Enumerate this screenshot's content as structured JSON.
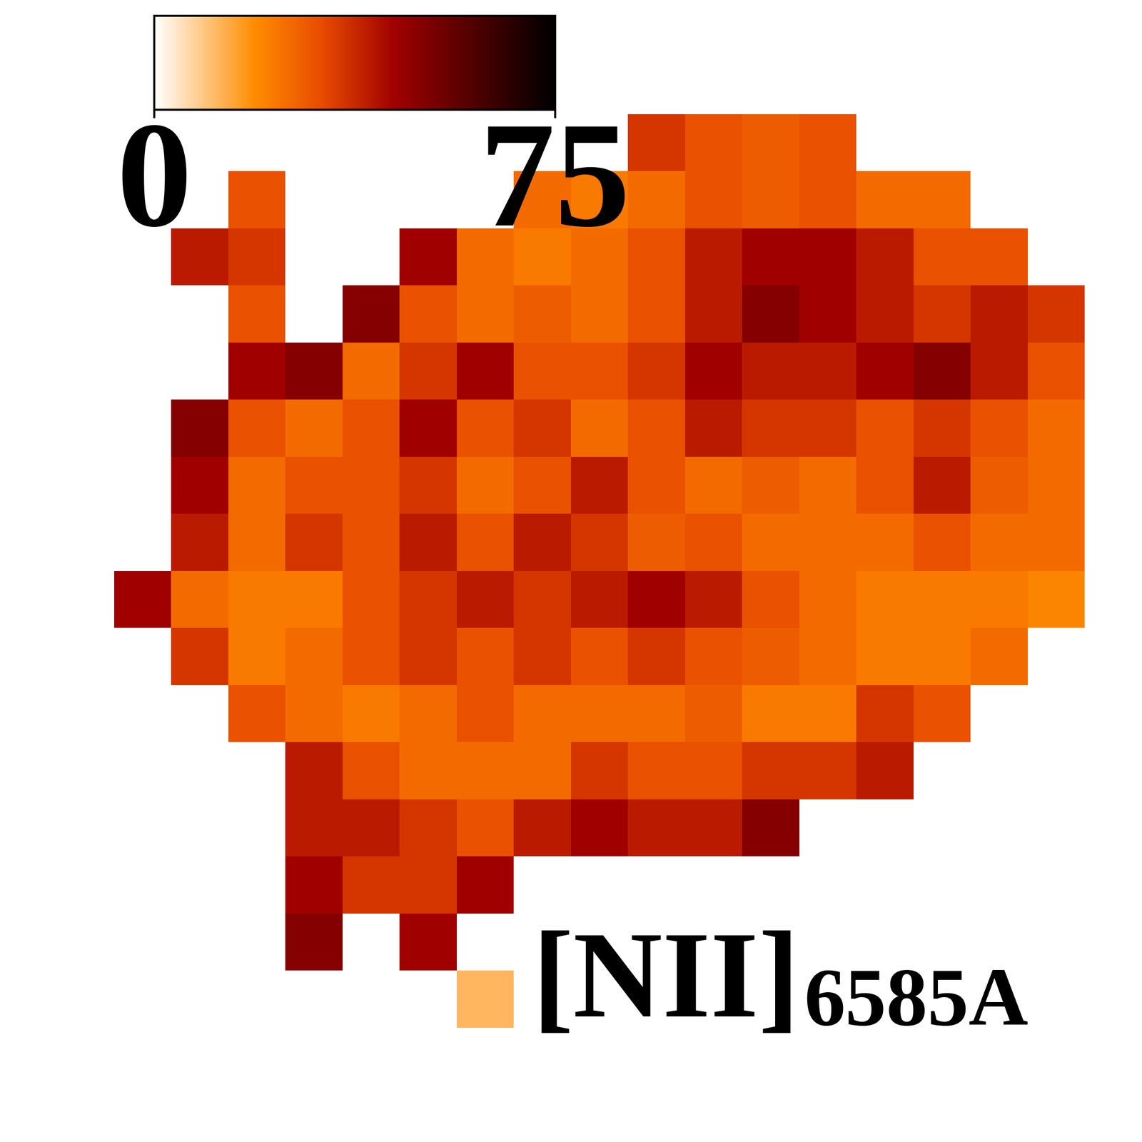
{
  "chart_data": {
    "type": "heatmap",
    "cells": [
      [
        null,
        null,
        null,
        null,
        null,
        null,
        null,
        null,
        null,
        null,
        null,
        null,
        null,
        null,
        null,
        null,
        null,
        null,
        null,
        null
      ],
      [
        null,
        null,
        null,
        null,
        null,
        null,
        null,
        null,
        null,
        null,
        null,
        null,
        null,
        null,
        null,
        null,
        null,
        null,
        null,
        null
      ],
      [
        null,
        null,
        null,
        null,
        null,
        null,
        null,
        null,
        null,
        null,
        null,
        35,
        30,
        28,
        30,
        null,
        null,
        null,
        null,
        null
      ],
      [
        null,
        null,
        null,
        null,
        30,
        null,
        null,
        null,
        null,
        25,
        22,
        25,
        30,
        28,
        30,
        25,
        25,
        null,
        null,
        null
      ],
      [
        null,
        null,
        null,
        40,
        35,
        null,
        null,
        45,
        25,
        22,
        25,
        30,
        40,
        45,
        45,
        40,
        30,
        30,
        null,
        null
      ],
      [
        null,
        null,
        null,
        null,
        30,
        null,
        50,
        30,
        25,
        28,
        25,
        30,
        40,
        50,
        45,
        40,
        35,
        40,
        35,
        null
      ],
      [
        null,
        null,
        null,
        null,
        45,
        50,
        25,
        35,
        45,
        30,
        30,
        35,
        45,
        40,
        40,
        45,
        50,
        40,
        30,
        null
      ],
      [
        null,
        null,
        null,
        50,
        30,
        25,
        30,
        45,
        30,
        35,
        25,
        30,
        40,
        35,
        35,
        30,
        35,
        30,
        25,
        null
      ],
      [
        null,
        null,
        null,
        45,
        25,
        30,
        30,
        35,
        25,
        30,
        40,
        30,
        25,
        28,
        25,
        30,
        40,
        28,
        25,
        null
      ],
      [
        null,
        null,
        null,
        40,
        25,
        35,
        30,
        40,
        30,
        40,
        35,
        28,
        30,
        25,
        25,
        25,
        30,
        25,
        25,
        null
      ],
      [
        null,
        null,
        45,
        25,
        22,
        22,
        30,
        35,
        40,
        35,
        40,
        45,
        40,
        30,
        25,
        22,
        22,
        22,
        20,
        null
      ],
      [
        null,
        null,
        null,
        35,
        22,
        25,
        30,
        35,
        30,
        35,
        30,
        35,
        30,
        28,
        25,
        22,
        22,
        25,
        null,
        null
      ],
      [
        null,
        null,
        null,
        null,
        30,
        25,
        22,
        25,
        30,
        25,
        25,
        25,
        28,
        22,
        22,
        35,
        30,
        null,
        null,
        null
      ],
      [
        null,
        null,
        null,
        null,
        null,
        40,
        30,
        25,
        25,
        25,
        35,
        30,
        30,
        35,
        35,
        40,
        null,
        null,
        null,
        null
      ],
      [
        null,
        null,
        null,
        null,
        null,
        40,
        40,
        35,
        30,
        40,
        45,
        40,
        40,
        50,
        null,
        null,
        null,
        null,
        null,
        null
      ],
      [
        null,
        null,
        null,
        null,
        null,
        45,
        35,
        35,
        45,
        null,
        null,
        null,
        null,
        null,
        null,
        null,
        null,
        null,
        null,
        null
      ],
      [
        null,
        null,
        null,
        null,
        null,
        50,
        null,
        45,
        null,
        null,
        null,
        null,
        null,
        null,
        null,
        null,
        null,
        null,
        null,
        null
      ],
      [
        null,
        null,
        null,
        null,
        null,
        null,
        null,
        null,
        12,
        null,
        null,
        null,
        null,
        null,
        null,
        null,
        null,
        null,
        null,
        null
      ],
      [
        null,
        null,
        null,
        null,
        null,
        null,
        null,
        null,
        null,
        null,
        null,
        null,
        null,
        null,
        null,
        null,
        null,
        null,
        null,
        null
      ],
      [
        null,
        null,
        null,
        null,
        null,
        null,
        null,
        null,
        null,
        null,
        null,
        null,
        null,
        null,
        null,
        null,
        null,
        null,
        null,
        null
      ]
    ],
    "colorbar": {
      "range": [
        0,
        75
      ],
      "ticks": [
        0,
        75
      ]
    },
    "label": {
      "text": "[NII]",
      "subscript": "6585A"
    },
    "tick_labels": false
  }
}
